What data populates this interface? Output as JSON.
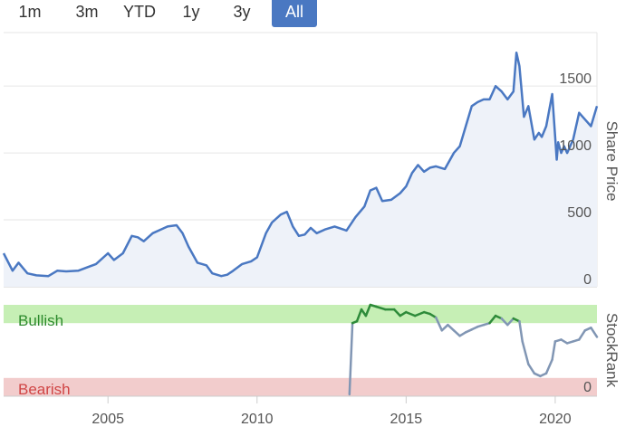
{
  "range_selector": {
    "buttons": [
      {
        "label": "1m",
        "active": false
      },
      {
        "label": "3m",
        "active": false
      },
      {
        "label": "YTD",
        "active": false
      },
      {
        "label": "1y",
        "active": false
      },
      {
        "label": "3y",
        "active": false
      },
      {
        "label": "All",
        "active": true
      }
    ]
  },
  "colors": {
    "price_line": "#4a78c2",
    "price_fill": "#eef2f9",
    "bullish_band": "#c6efb5",
    "bearish_band": "#f2cccc",
    "bullish_text": "#2e8b2e",
    "bearish_text": "#d04545",
    "rank_bull_line": "#2e8b3a",
    "rank_neutral_line": "#8196b4",
    "rank_bear_line": "#d04545",
    "active_button": "#4a78c2"
  },
  "chart_data": [
    {
      "type": "area",
      "ylabel": "Share Price",
      "ylim": [
        0,
        1900
      ],
      "xlim": [
        2001.5,
        2021.4
      ],
      "y_ticks": [
        0,
        500,
        1000,
        1500
      ],
      "x_ticks": [
        2005,
        2010,
        2015,
        2020
      ],
      "grid": "horizontal",
      "series": [
        {
          "x": [
            2001.5,
            2001.8,
            2002.0,
            2002.3,
            2002.6,
            2003.0,
            2003.3,
            2003.6,
            2004.0,
            2004.3,
            2004.6,
            2005.0,
            2005.2,
            2005.5,
            2005.8,
            2006.0,
            2006.2,
            2006.5,
            2006.8,
            2007.0,
            2007.3,
            2007.5,
            2007.7,
            2008.0,
            2008.3,
            2008.5,
            2008.8,
            2009.0,
            2009.2,
            2009.5,
            2009.8,
            2010.0,
            2010.3,
            2010.5,
            2010.8,
            2011.0,
            2011.2,
            2011.4,
            2011.6,
            2011.8,
            2012.0,
            2012.3,
            2012.6,
            2013.0,
            2013.3,
            2013.6,
            2013.8,
            2014.0,
            2014.2,
            2014.5,
            2014.8,
            2015.0,
            2015.2,
            2015.4,
            2015.6,
            2015.8,
            2016.0,
            2016.3,
            2016.6,
            2016.8,
            2017.0,
            2017.2,
            2017.4,
            2017.6,
            2017.8,
            2018.0,
            2018.2,
            2018.4,
            2018.6,
            2018.7,
            2018.8,
            2018.95,
            2019.1,
            2019.3,
            2019.45,
            2019.55,
            2019.7,
            2019.9,
            2020.05,
            2020.1,
            2020.2,
            2020.3,
            2020.4,
            2020.6,
            2020.8,
            2021.0,
            2021.2,
            2021.4
          ],
          "values": [
            250,
            120,
            180,
            100,
            85,
            80,
            120,
            115,
            120,
            145,
            170,
            250,
            200,
            250,
            380,
            370,
            340,
            400,
            430,
            450,
            460,
            400,
            300,
            180,
            160,
            100,
            80,
            90,
            120,
            170,
            190,
            220,
            400,
            480,
            540,
            560,
            450,
            380,
            390,
            440,
            400,
            430,
            450,
            420,
            520,
            600,
            720,
            740,
            640,
            650,
            700,
            750,
            850,
            910,
            860,
            890,
            900,
            880,
            1000,
            1050,
            1200,
            1350,
            1380,
            1400,
            1400,
            1500,
            1460,
            1400,
            1460,
            1750,
            1650,
            1270,
            1350,
            1100,
            1150,
            1120,
            1200,
            1440,
            950,
            1080,
            1000,
            1050,
            1000,
            1100,
            1300,
            1250,
            1200,
            1350
          ],
          "color": "#4a78c2"
        }
      ]
    },
    {
      "type": "line",
      "ylabel": "StockRank",
      "ylim": [
        0,
        100
      ],
      "y_ticks": [
        0
      ],
      "x_ticks": [
        2005,
        2010,
        2015,
        2020
      ],
      "bands": [
        {
          "label": "Bullish",
          "from": 80,
          "to": 100,
          "color": "#c6efb5"
        },
        {
          "label": "Bearish",
          "from": 0,
          "to": 20,
          "color": "#f2cccc"
        }
      ],
      "series": [
        {
          "x": [
            2013.1,
            2013.2,
            2013.35,
            2013.5,
            2013.65,
            2013.8,
            2014.0,
            2014.3,
            2014.6,
            2014.8,
            2015.0,
            2015.3,
            2015.6,
            2015.8,
            2016.0,
            2016.2,
            2016.4,
            2016.6,
            2016.8,
            2017.0,
            2017.2,
            2017.4,
            2017.6,
            2017.8,
            2018.0,
            2018.2,
            2018.4,
            2018.6,
            2018.8,
            2018.9,
            2019.1,
            2019.3,
            2019.5,
            2019.7,
            2019.9,
            2020.0,
            2020.2,
            2020.4,
            2020.6,
            2020.8,
            2021.0,
            2021.2,
            2021.4
          ],
          "values": [
            2,
            80,
            82,
            95,
            88,
            100,
            98,
            95,
            95,
            88,
            92,
            88,
            92,
            90,
            86,
            72,
            78,
            72,
            66,
            70,
            73,
            76,
            78,
            80,
            88,
            85,
            78,
            85,
            82,
            60,
            35,
            25,
            22,
            25,
            40,
            60,
            62,
            58,
            60,
            62,
            72,
            75,
            65
          ],
          "color": "#8196b4"
        }
      ]
    }
  ]
}
